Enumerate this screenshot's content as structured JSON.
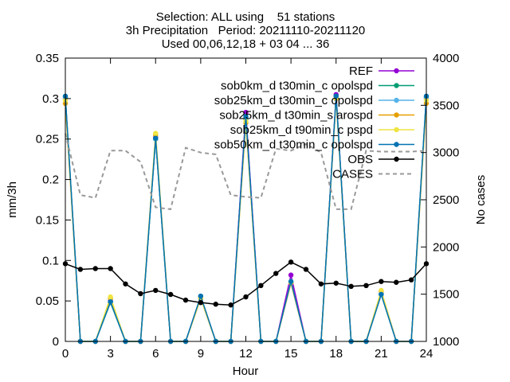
{
  "chart_data": {
    "type": "line",
    "title_lines": [
      "Selection: ALL using    51 stations",
      "3h Precipitation   Period: 20211110-20211120",
      "Used 00,06,12,18 + 03 04 ... 36"
    ],
    "xlabel": "Hour",
    "ylabel": "mm/3h",
    "y2label": "No cases",
    "xlim": [
      0,
      24
    ],
    "ylim": [
      0,
      0.35
    ],
    "y2lim": [
      1000,
      4000
    ],
    "xticks": [
      "0",
      "3",
      "6",
      "9",
      "12",
      "15",
      "18",
      "21",
      "24"
    ],
    "yticks": [
      "0",
      "0.05",
      "0.1",
      "0.15",
      "0.2",
      "0.25",
      "0.3",
      "0.35"
    ],
    "y2ticks": [
      "1000",
      "1500",
      "2000",
      "2500",
      "3000",
      "3500",
      "4000"
    ],
    "grid": false,
    "legend_position": "top-right",
    "x": [
      0,
      1,
      2,
      3,
      4,
      5,
      6,
      7,
      8,
      9,
      10,
      11,
      12,
      13,
      14,
      15,
      16,
      17,
      18,
      19,
      20,
      21,
      22,
      23,
      24
    ],
    "series": [
      {
        "name": "REF",
        "color": "#9400d3",
        "marker": "circle",
        "values": [
          0.3,
          0,
          0,
          0.05,
          0,
          0,
          0.252,
          0,
          0,
          0.055,
          0,
          0,
          0.283,
          0,
          0,
          0.082,
          0,
          0,
          0.305,
          0,
          0,
          0.062,
          0,
          0,
          0.3
        ]
      },
      {
        "name": "sob0km_d t30min_c opolspd",
        "color": "#009e73",
        "marker": "circle",
        "values": [
          0.302,
          0,
          0,
          0.048,
          0,
          0,
          0.25,
          0,
          0,
          0.054,
          0,
          0,
          0.275,
          0,
          0,
          0.073,
          0,
          0,
          0.303,
          0,
          0,
          0.058,
          0,
          0,
          0.302
        ]
      },
      {
        "name": "sob25km_d t30min_c opolspd",
        "color": "#56b4e9",
        "marker": "circle",
        "values": [
          0.301,
          0,
          0,
          0.049,
          0,
          0,
          0.25,
          0,
          0,
          0.055,
          0,
          0,
          0.276,
          0,
          0,
          0.074,
          0,
          0,
          0.302,
          0,
          0,
          0.059,
          0,
          0,
          0.301
        ]
      },
      {
        "name": "sob25km_d t30min_s arospd",
        "color": "#e69f00",
        "marker": "circle",
        "values": [
          0.294,
          0,
          0,
          0.053,
          0,
          0,
          0.255,
          0,
          0,
          0.053,
          0,
          0,
          0.27,
          0,
          0,
          0.072,
          0,
          0,
          0.3,
          0,
          0,
          0.062,
          0,
          0,
          0.294
        ]
      },
      {
        "name": "sob25km_d t90min_c pspd",
        "color": "#f0e442",
        "marker": "circle",
        "values": [
          0.298,
          0,
          0,
          0.055,
          0,
          0,
          0.257,
          0,
          0,
          0.054,
          0,
          0,
          0.272,
          0,
          0,
          0.073,
          0,
          0,
          0.301,
          0,
          0,
          0.063,
          0,
          0,
          0.298
        ]
      },
      {
        "name": "sob50km_d t30min_c opolspd",
        "color": "#0072b2",
        "marker": "circle",
        "values": [
          0.303,
          0,
          0,
          0.049,
          0,
          0,
          0.251,
          0,
          0,
          0.056,
          0,
          0,
          0.278,
          0,
          0,
          0.074,
          0,
          0,
          0.303,
          0,
          0,
          0.058,
          0,
          0,
          0.303
        ]
      },
      {
        "name": "OBS",
        "color": "#000000",
        "marker": "circle",
        "values": [
          0.096,
          0.089,
          0.09,
          0.09,
          0.071,
          0.059,
          0.063,
          0.058,
          0.051,
          0.048,
          0.046,
          0.045,
          0.055,
          0.069,
          0.084,
          0.098,
          0.089,
          0.071,
          0.072,
          0.068,
          0.069,
          0.074,
          0.073,
          0.076,
          0.096
        ]
      },
      {
        "name": "CASES",
        "color": "#999999",
        "dashed": true,
        "axis": "y2",
        "values": [
          3200,
          2550,
          2520,
          3020,
          3020,
          2900,
          2420,
          2400,
          3050,
          3000,
          2980,
          2550,
          2530,
          2520,
          3040,
          3020,
          3090,
          3000,
          2400,
          2400,
          3020,
          3010,
          3010,
          3010,
          3020
        ]
      }
    ]
  }
}
